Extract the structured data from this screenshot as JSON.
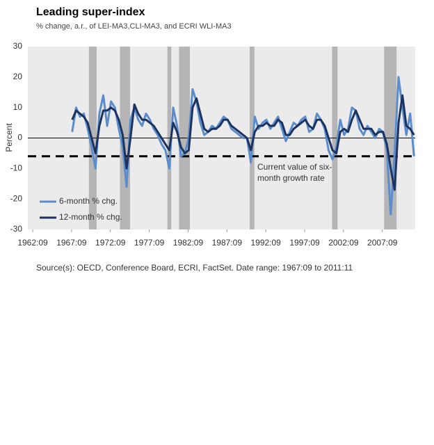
{
  "chart_data": {
    "type": "line",
    "title": "Leading super-index",
    "subtitle": "% change, a.r., of LEI-MA3,CLI-MA3,  and ECRI WLI-MA3",
    "y_label": "Percent",
    "source": "Source(s): OECD, Conference Board, ECRI, FactSet. Date range: 1967:09 to 2011:11",
    "xlim": [
      1962.04,
      2011.9
    ],
    "xticks": [
      {
        "value": 1962.67,
        "label": "1962:09"
      },
      {
        "value": 1967.67,
        "label": "1967:09"
      },
      {
        "value": 1972.67,
        "label": "1972:09"
      },
      {
        "value": 1977.67,
        "label": "1977:09"
      },
      {
        "value": 1982.67,
        "label": "1982:09"
      },
      {
        "value": 1987.67,
        "label": "1987:09"
      },
      {
        "value": 1992.67,
        "label": "1992:09"
      },
      {
        "value": 1997.67,
        "label": "1997:09"
      },
      {
        "value": 2002.67,
        "label": "2002:09"
      },
      {
        "value": 2007.67,
        "label": "2007:09"
      }
    ],
    "ylim": [
      -30,
      30
    ],
    "yticks": [
      -30,
      -20,
      -10,
      0,
      10,
      20,
      30
    ],
    "legend": "lower left",
    "shaded_periods": [
      [
        1969.9,
        1970.9
      ],
      [
        1973.9,
        1975.2
      ],
      [
        1980.0,
        1980.5
      ],
      [
        1981.5,
        1982.9
      ],
      [
        1990.6,
        1991.2
      ],
      [
        2001.2,
        2001.9
      ],
      [
        2007.9,
        2009.5
      ]
    ],
    "reference_line": {
      "value": -6,
      "label": [
        "Current value of six-",
        "month growth rate"
      ]
    },
    "x": [
      1967.75,
      1968.25,
      1968.75,
      1969.25,
      1969.75,
      1970.25,
      1970.75,
      1971.25,
      1971.75,
      1972.25,
      1972.75,
      1973.25,
      1973.75,
      1974.25,
      1974.75,
      1975.25,
      1975.75,
      1976.25,
      1976.75,
      1977.25,
      1977.75,
      1978.25,
      1978.75,
      1979.25,
      1979.75,
      1980.25,
      1980.75,
      1981.25,
      1981.75,
      1982.25,
      1982.75,
      1983.25,
      1983.75,
      1984.25,
      1984.75,
      1985.25,
      1985.75,
      1986.25,
      1986.75,
      1987.25,
      1987.75,
      1988.25,
      1988.75,
      1989.25,
      1989.75,
      1990.25,
      1990.75,
      1991.25,
      1991.75,
      1992.25,
      1992.75,
      1993.25,
      1993.75,
      1994.25,
      1994.75,
      1995.25,
      1995.75,
      1996.25,
      1996.75,
      1997.25,
      1997.75,
      1998.25,
      1998.75,
      1999.25,
      1999.75,
      2000.25,
      2000.75,
      2001.25,
      2001.75,
      2002.25,
      2002.75,
      2003.25,
      2003.75,
      2004.25,
      2004.75,
      2005.25,
      2005.75,
      2006.25,
      2006.75,
      2007.25,
      2007.75,
      2008.25,
      2008.75,
      2009.25,
      2009.75,
      2010.25,
      2010.75,
      2011.25,
      2011.75
    ],
    "series": [
      {
        "name": "6-month % chg.",
        "color": "#5b8ccc",
        "values": [
          2,
          10,
          7,
          8,
          3,
          -3,
          -10,
          8,
          14,
          4,
          12,
          10,
          3,
          -3,
          -16,
          6,
          10,
          6,
          4,
          8,
          6,
          3,
          1,
          -2,
          -4,
          -10,
          10,
          4,
          -6,
          -5,
          0,
          16,
          12,
          5,
          1,
          2,
          4,
          3,
          5,
          7,
          6,
          3,
          2,
          1,
          0,
          0,
          -8,
          7,
          3,
          5,
          6,
          3,
          5,
          7,
          3,
          -1,
          2,
          5,
          4,
          6,
          7,
          2,
          3,
          8,
          6,
          3,
          -4,
          -7,
          -3,
          6,
          1,
          3,
          10,
          9,
          3,
          1,
          4,
          2,
          0,
          3,
          2,
          -4,
          -25,
          -5,
          20,
          10,
          1,
          8,
          -6
        ]
      },
      {
        "name": "12-month % chg.",
        "color": "#1c3260",
        "values": [
          6,
          9,
          8,
          7,
          5,
          0,
          -5,
          4,
          9,
          9,
          10,
          9,
          6,
          1,
          -10,
          0,
          11,
          8,
          6,
          6,
          5,
          4,
          2,
          0,
          -2,
          -4,
          5,
          2,
          -3,
          -5,
          -4,
          10,
          13,
          8,
          3,
          2,
          3,
          3,
          4,
          6,
          6,
          4,
          3,
          2,
          1,
          0,
          -4,
          2,
          4,
          4,
          5,
          4,
          4,
          6,
          5,
          1,
          1,
          3,
          4,
          5,
          6,
          4,
          3,
          6,
          6,
          4,
          0,
          -4,
          -5,
          2,
          3,
          2,
          6,
          9,
          6,
          3,
          3,
          3,
          1,
          2,
          2,
          -2,
          -10,
          -17,
          5,
          14,
          4,
          3,
          1
        ]
      }
    ]
  }
}
